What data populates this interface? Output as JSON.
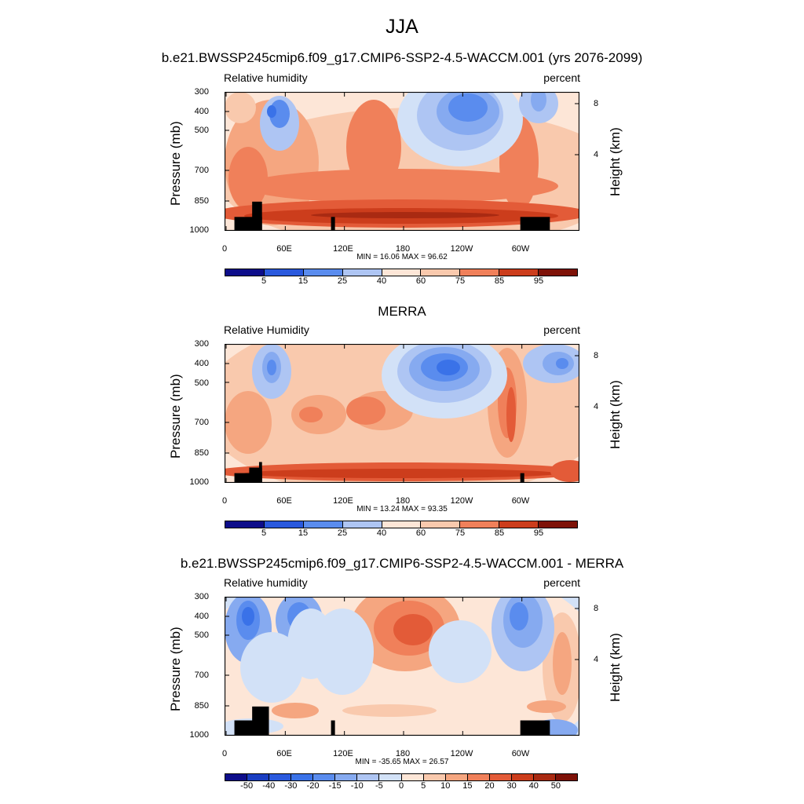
{
  "main_title": "JJA",
  "chart_data": [
    {
      "type": "heatmap",
      "title": "b.e21.BWSSP245cmip6.f09_g17.CMIP6-SSP2-4.5-WACCM.001 (yrs 2076-2099)",
      "variable": "Relative humidity",
      "units": "percent",
      "ylabel": "Pressure (mb)",
      "ylabel_right": "Height (km)",
      "yticks": [
        "300",
        "400",
        "500",
        "700",
        "850",
        "1000"
      ],
      "yticks_right": [
        "8",
        "4"
      ],
      "xticks": [
        "0",
        "60E",
        "120E",
        "180",
        "120W",
        "60W"
      ],
      "stats": "MIN =  16.06  MAX =  96.62",
      "min": 16.06,
      "max": 96.62,
      "colorbar_ticks": [
        "5",
        "15",
        "25",
        "40",
        "60",
        "75",
        "85",
        "95"
      ]
    },
    {
      "type": "heatmap",
      "title": "MERRA",
      "variable": "Relative Humidity",
      "units": "percent",
      "ylabel": "Pressure (mb)",
      "ylabel_right": "Height (km)",
      "yticks": [
        "300",
        "400",
        "500",
        "700",
        "850",
        "1000"
      ],
      "yticks_right": [
        "8",
        "4"
      ],
      "xticks": [
        "0",
        "60E",
        "120E",
        "180",
        "120W",
        "60W"
      ],
      "stats": "MIN =  13.24  MAX =  93.35",
      "min": 13.24,
      "max": 93.35,
      "colorbar_ticks": [
        "5",
        "15",
        "25",
        "40",
        "60",
        "75",
        "85",
        "95"
      ]
    },
    {
      "type": "heatmap",
      "title": "b.e21.BWSSP245cmip6.f09_g17.CMIP6-SSP2-4.5-WACCM.001 - MERRA",
      "variable": "Relative humidity",
      "units": "percent",
      "ylabel": "Pressure (mb)",
      "ylabel_right": "Height (km)",
      "yticks": [
        "300",
        "400",
        "500",
        "700",
        "850",
        "1000"
      ],
      "yticks_right": [
        "8",
        "4"
      ],
      "xticks": [
        "0",
        "60E",
        "120E",
        "180",
        "120W",
        "60W"
      ],
      "stats": "MIN = -35.65  MAX =  26.57",
      "min": -35.65,
      "max": 26.57,
      "colorbar_ticks": [
        "-50",
        "-40",
        "-30",
        "-20",
        "-15",
        "-10",
        "-5",
        "0",
        "5",
        "10",
        "15",
        "20",
        "30",
        "40",
        "50"
      ]
    }
  ],
  "colors": {
    "palette": [
      "#0d0d8a",
      "#1a3ec2",
      "#2a59dd",
      "#3a72e8",
      "#5a8cee",
      "#86aaf0",
      "#aec5f3",
      "#d2e1f7",
      "#fde6d7",
      "#f9c9ad",
      "#f5a680",
      "#f0805a",
      "#e35b38",
      "#cc3d1c",
      "#a92a12",
      "#7e1208"
    ],
    "terrain": "#000000"
  }
}
